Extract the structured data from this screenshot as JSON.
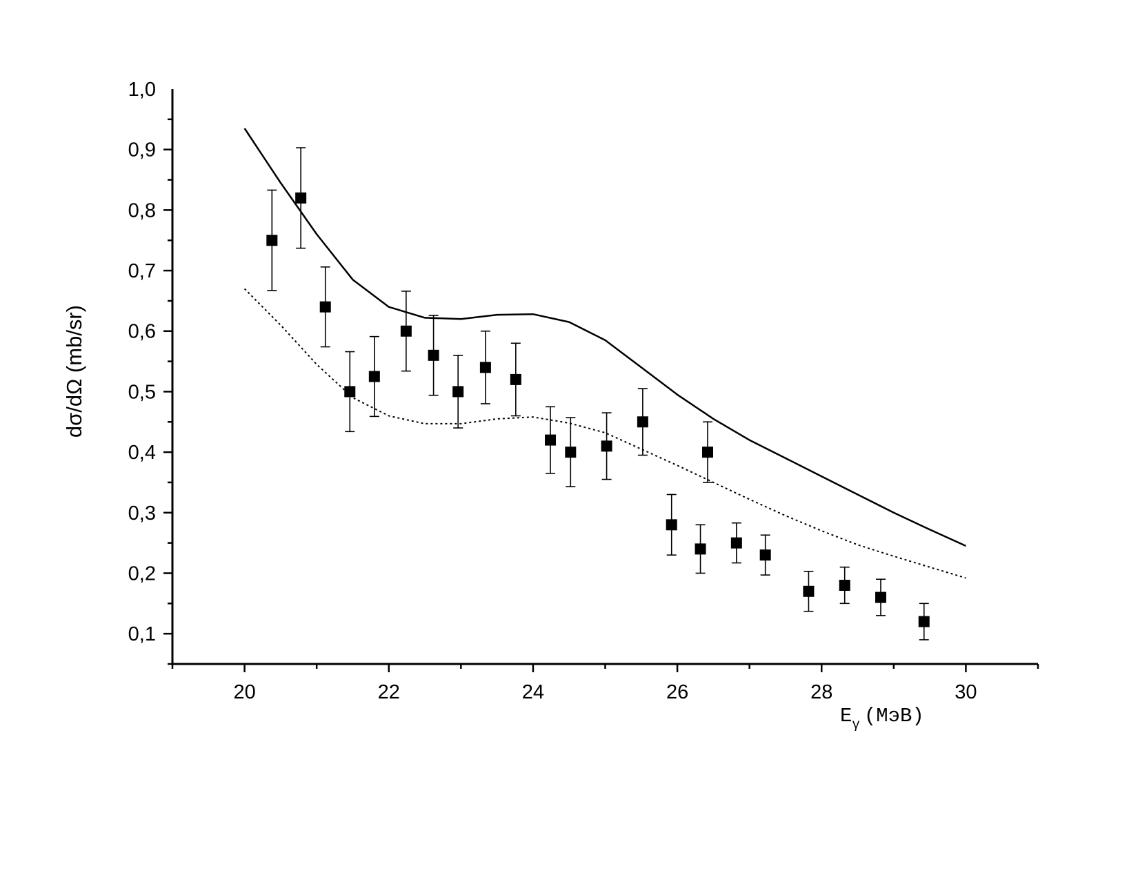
{
  "chart_data": {
    "type": "scatter",
    "xlabel": "E",
    "xlabel_subscript": "γ",
    "xlabel_unit": "(МэВ)",
    "ylabel": "dσ/dΩ (mb/sr)",
    "xlim": [
      19,
      31
    ],
    "ylim": [
      0.05,
      1.0
    ],
    "x_ticks": [
      20,
      22,
      24,
      26,
      28,
      30
    ],
    "x_tick_labels": [
      "20",
      "22",
      "24",
      "26",
      "28",
      "30"
    ],
    "y_ticks": [
      0.1,
      0.2,
      0.3,
      0.4,
      0.5,
      0.6,
      0.7,
      0.8,
      0.9,
      1.0
    ],
    "y_tick_labels": [
      "0,1",
      "0,2",
      "0,3",
      "0,4",
      "0,5",
      "0,6",
      "0,7",
      "0,8",
      "0,9",
      "1,0"
    ],
    "grid": false,
    "legend": "none",
    "series": [
      {
        "style": "points-with-error-bars",
        "color": "#000000",
        "points": [
          {
            "x": 20.38,
            "y": 0.75,
            "err": 0.083
          },
          {
            "x": 20.78,
            "y": 0.82,
            "err": 0.083
          },
          {
            "x": 21.12,
            "y": 0.64,
            "err": 0.066
          },
          {
            "x": 21.46,
            "y": 0.5,
            "err": 0.066
          },
          {
            "x": 21.8,
            "y": 0.525,
            "err": 0.066
          },
          {
            "x": 22.24,
            "y": 0.6,
            "err": 0.066
          },
          {
            "x": 22.62,
            "y": 0.56,
            "err": 0.066
          },
          {
            "x": 22.96,
            "y": 0.5,
            "err": 0.06
          },
          {
            "x": 23.34,
            "y": 0.54,
            "err": 0.06
          },
          {
            "x": 23.76,
            "y": 0.52,
            "err": 0.06
          },
          {
            "x": 24.24,
            "y": 0.42,
            "err": 0.055
          },
          {
            "x": 24.52,
            "y": 0.4,
            "err": 0.057
          },
          {
            "x": 25.02,
            "y": 0.41,
            "err": 0.055
          },
          {
            "x": 25.52,
            "y": 0.45,
            "err": 0.055
          },
          {
            "x": 25.92,
            "y": 0.28,
            "err": 0.05
          },
          {
            "x": 26.32,
            "y": 0.24,
            "err": 0.04
          },
          {
            "x": 26.42,
            "y": 0.4,
            "err": 0.05
          },
          {
            "x": 26.82,
            "y": 0.25,
            "err": 0.033
          },
          {
            "x": 27.22,
            "y": 0.23,
            "err": 0.033
          },
          {
            "x": 27.82,
            "y": 0.17,
            "err": 0.033
          },
          {
            "x": 28.32,
            "y": 0.18,
            "err": 0.03
          },
          {
            "x": 28.82,
            "y": 0.16,
            "err": 0.03
          },
          {
            "x": 29.42,
            "y": 0.12,
            "err": 0.03
          }
        ]
      },
      {
        "style": "solid-line",
        "color": "#000000",
        "x": [
          20.0,
          20.5,
          21.0,
          21.5,
          22.0,
          22.5,
          23.0,
          23.5,
          24.0,
          24.5,
          25.0,
          25.5,
          26.0,
          26.5,
          27.0,
          27.5,
          28.0,
          28.5,
          29.0,
          29.5,
          30.0
        ],
        "y": [
          0.935,
          0.845,
          0.76,
          0.685,
          0.64,
          0.622,
          0.62,
          0.627,
          0.628,
          0.615,
          0.585,
          0.54,
          0.495,
          0.455,
          0.42,
          0.39,
          0.36,
          0.33,
          0.3,
          0.272,
          0.245
        ]
      },
      {
        "style": "dotted-line",
        "color": "#000000",
        "x": [
          20.0,
          20.5,
          21.0,
          21.5,
          22.0,
          22.5,
          23.0,
          23.5,
          24.0,
          24.5,
          25.0,
          25.5,
          26.0,
          26.5,
          27.0,
          27.5,
          28.0,
          28.5,
          29.0,
          29.5,
          30.0
        ],
        "y": [
          0.67,
          0.61,
          0.545,
          0.49,
          0.46,
          0.447,
          0.447,
          0.455,
          0.458,
          0.448,
          0.432,
          0.405,
          0.378,
          0.35,
          0.322,
          0.295,
          0.27,
          0.247,
          0.228,
          0.21,
          0.192
        ]
      }
    ]
  }
}
